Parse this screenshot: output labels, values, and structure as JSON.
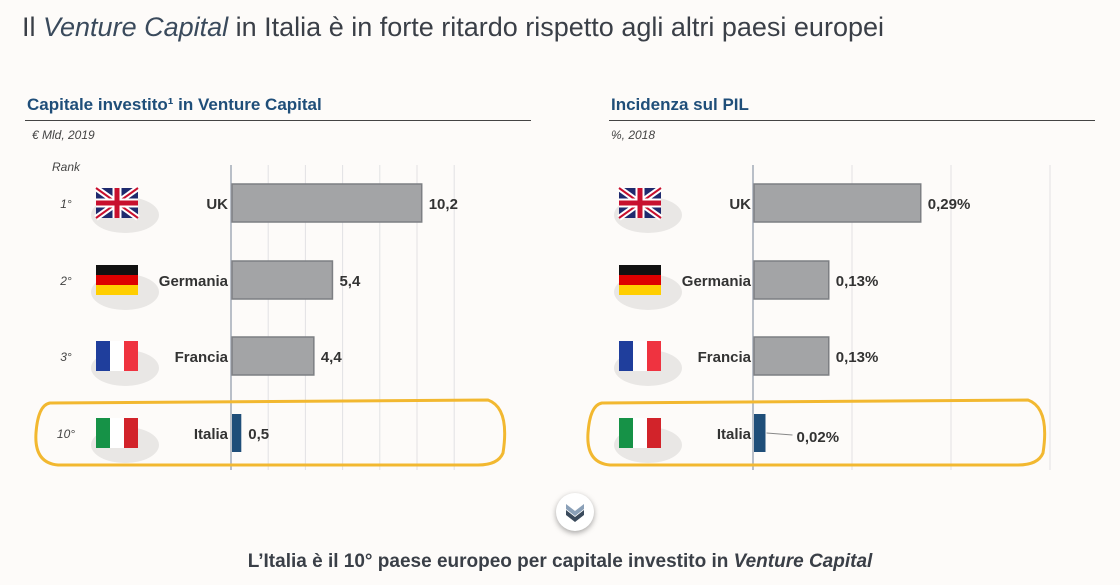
{
  "title": {
    "pre": "Il ",
    "italic": "Venture Capital",
    "post": " in Italia è in forte ritardo rispetto agli altri paesi europei"
  },
  "chart_data": [
    {
      "type": "bar",
      "title": "Capitale investito¹ in Venture Capital",
      "subtitle": "€ Mld, 2019",
      "rank_header": "Rank",
      "categories": [
        "UK",
        "Germania",
        "Francia",
        "Italia"
      ],
      "ranks": [
        "1°",
        "2°",
        "3°",
        "10°"
      ],
      "values": [
        10.2,
        5.4,
        4.4,
        0.5
      ],
      "labels": [
        "10,2",
        "5,4",
        "4,4",
        "0,5"
      ],
      "xlim": [
        0,
        12
      ]
    },
    {
      "type": "bar",
      "title": "Incidenza sul PIL",
      "subtitle": "%, 2018",
      "categories": [
        "UK",
        "Germania",
        "Francia",
        "Italia"
      ],
      "values": [
        0.29,
        0.13,
        0.13,
        0.02
      ],
      "labels": [
        "0,29%",
        "0,13%",
        "0,13%",
        "0,02%"
      ],
      "xlim": [
        0,
        0.35
      ]
    }
  ],
  "colors": {
    "bar": "#a3a4a6",
    "highlight": "#1f4e79",
    "circle": "#f2b830"
  },
  "conclusion": {
    "pre": "L’Italia è il 10° paese europeo per capitale investito in ",
    "italic": "Venture Capital"
  }
}
